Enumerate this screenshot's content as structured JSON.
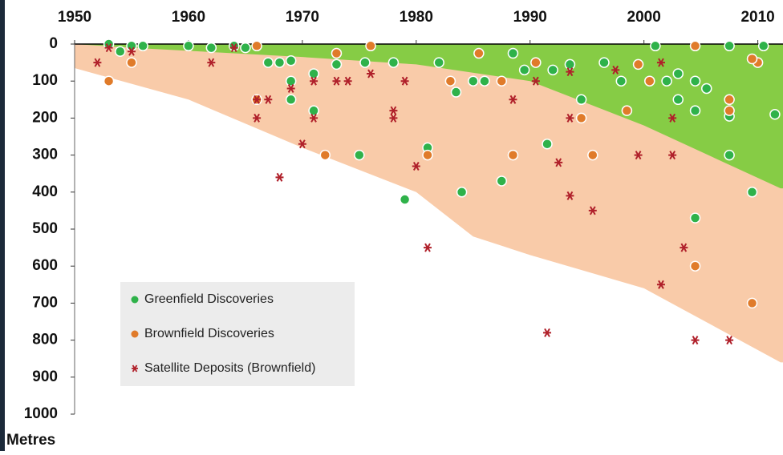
{
  "chart_data": {
    "type": "scatter",
    "y_label": "Metres",
    "xlim": [
      1950,
      2012
    ],
    "ylim": [
      0,
      1000
    ],
    "y_inverted": true,
    "x_axis_position": "top",
    "xticks": [
      1950,
      1960,
      1970,
      1980,
      1990,
      2000,
      2010
    ],
    "yticks": [
      0,
      100,
      200,
      300,
      400,
      500,
      600,
      700,
      800,
      900,
      1000
    ],
    "legend_position": "lower left",
    "regions": [
      {
        "color": "#f9cba9",
        "x": [
          1950,
          1960,
          1970,
          1980,
          1985,
          1990,
          2000,
          2012
        ],
        "values": [
          65,
          150,
          280,
          400,
          520,
          570,
          660,
          860
        ]
      },
      {
        "color": "#86cc45",
        "x": [
          1950,
          1955,
          1970,
          1980,
          1990,
          2000,
          2012
        ],
        "values": [
          0,
          10,
          35,
          55,
          100,
          220,
          390
        ]
      }
    ],
    "series": [
      {
        "name": "Greenfield Discoveries",
        "color": "#2fb24a",
        "marker": "circle",
        "x": [
          1953,
          1954,
          1955,
          1956,
          1960,
          1962,
          1964,
          1965,
          1967,
          1968,
          1969,
          1969,
          1971,
          1971,
          1969,
          1973,
          1975,
          1975.5,
          1978,
          1979,
          1981,
          1982,
          1983.5,
          1984,
          1985,
          1986,
          1987.5,
          1988.5,
          1989.5,
          1991.5,
          1992,
          1993.5,
          1994.5,
          1996.5,
          1998,
          2001,
          2002,
          2003,
          2003,
          2004.5,
          2004.5,
          2004.5,
          2005.5,
          2007.5,
          2007.5,
          2007.5,
          2009.5,
          2010.5,
          2011.5
        ],
        "values": [
          0,
          20,
          5,
          5,
          5,
          10,
          5,
          10,
          50,
          50,
          100,
          150,
          180,
          80,
          45,
          55,
          300,
          50,
          50,
          420,
          280,
          50,
          130,
          400,
          100,
          100,
          370,
          25,
          70,
          270,
          70,
          55,
          150,
          50,
          100,
          5,
          100,
          150,
          80,
          180,
          470,
          100,
          120,
          300,
          195,
          5,
          400,
          5,
          190
        ]
      },
      {
        "name": "Brownfield Discoveries",
        "color": "#e07b2a",
        "marker": "circle",
        "x": [
          1953,
          1955,
          1966,
          1966,
          1972,
          1976,
          1981,
          1983,
          1987.5,
          1988.5,
          1990.5,
          1994.5,
          1995.5,
          1998.5,
          2000.5,
          2004.5,
          2007.5,
          2007.5,
          2009.5,
          2010,
          2009.5,
          2004.5,
          1999.5,
          1985.5,
          1973
        ],
        "values": [
          100,
          50,
          150,
          5,
          300,
          5,
          300,
          100,
          100,
          300,
          50,
          200,
          300,
          180,
          100,
          600,
          150,
          180,
          700,
          50,
          40,
          5,
          55,
          25,
          25
        ]
      },
      {
        "name": "Satellite Deposits (Brownfield)",
        "color": "#b0202a",
        "marker": "star",
        "x": [
          1952,
          1953,
          1955,
          1962,
          1964,
          1966,
          1967,
          1966,
          1968,
          1969,
          1970,
          1971,
          1971,
          1973,
          1974,
          1976,
          1978,
          1978,
          1979,
          1980,
          1981,
          1988.5,
          1990.5,
          1991.5,
          1992.5,
          1993.5,
          1993.5,
          1995.5,
          1999.5,
          2001.5,
          2002.5,
          2002.5,
          2003.5,
          2004.5,
          2007.5,
          2001.5,
          1997.5,
          1993.5
        ],
        "values": [
          50,
          10,
          20,
          50,
          10,
          150,
          150,
          200,
          360,
          120,
          270,
          200,
          100,
          100,
          100,
          80,
          180,
          200,
          100,
          330,
          550,
          150,
          100,
          780,
          320,
          410,
          200,
          450,
          300,
          650,
          300,
          200,
          550,
          800,
          800,
          50,
          70,
          75
        ]
      }
    ]
  }
}
